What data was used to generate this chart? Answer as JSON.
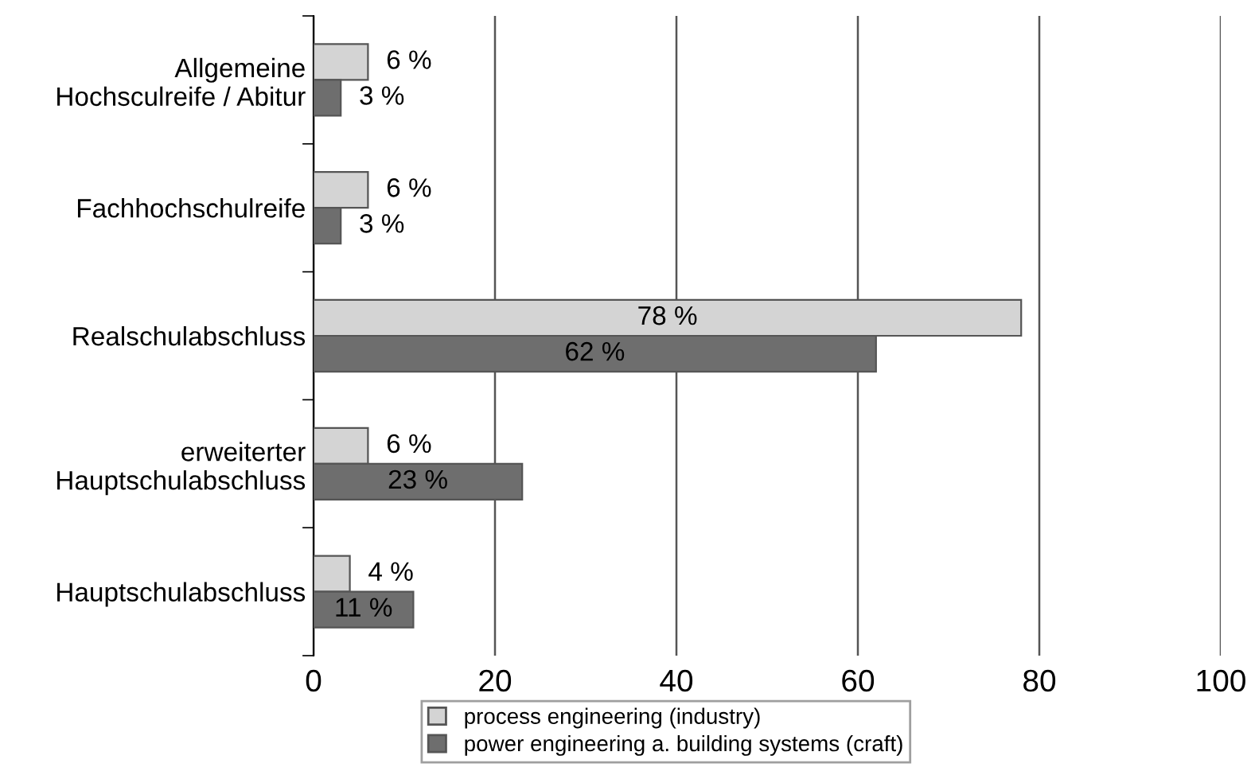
{
  "chart_data": {
    "type": "bar",
    "orientation": "horizontal",
    "categories": [
      "Allgemeine\nHochsculreife / Abitur",
      "Fachhochschulreife",
      "Realschulabschluss",
      "erweiterter\nHauptschulabschluss",
      "Hauptschulabschluss"
    ],
    "series": [
      {
        "name": "process engineering (industry)",
        "color": "#d4d4d4",
        "values": [
          6,
          6,
          78,
          6,
          4
        ],
        "value_labels": [
          "6 %",
          "6 %",
          "78 %",
          "6 %",
          "4 %"
        ]
      },
      {
        "name": "power engineering a. building systems (craft)",
        "color": "#6e6e6e",
        "values": [
          3,
          3,
          62,
          23,
          11
        ],
        "value_labels": [
          "3 %",
          "3 %",
          "62 %",
          "23 %",
          "11 %"
        ]
      }
    ],
    "xlim": [
      0,
      100
    ],
    "xticks": [
      0,
      20,
      40,
      60,
      80,
      100
    ],
    "grid": "x",
    "legend": "bottom"
  }
}
